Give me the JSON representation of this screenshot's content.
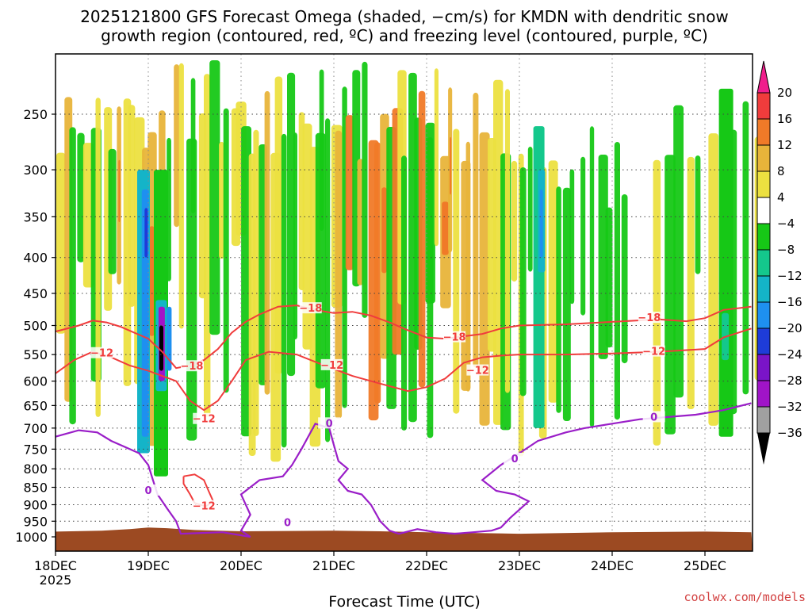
{
  "chart_data": {
    "type": "heatmap",
    "title_line1": "2025121800 GFS Forecast Omega (shaded, −cm/s) for KMDN with dendritic snow",
    "title_line2": "growth region (contoured, red, ºC) and freezing level (contoured, purple, ºC)",
    "xlabel": "Forecast Time (UTC)",
    "credit": "coolwx.com/models",
    "x_ticks": [
      {
        "label": "18DEC",
        "day": 0
      },
      {
        "label": "19DEC",
        "day": 1
      },
      {
        "label": "20DEC",
        "day": 2
      },
      {
        "label": "21DEC",
        "day": 3
      },
      {
        "label": "22DEC",
        "day": 4
      },
      {
        "label": "23DEC",
        "day": 5
      },
      {
        "label": "24DEC",
        "day": 6
      },
      {
        "label": "25DEC",
        "day": 7
      }
    ],
    "x_year_label": "2025",
    "x_range_days": [
      0,
      7.5
    ],
    "y_ticks": [
      250,
      300,
      350,
      400,
      450,
      500,
      550,
      600,
      650,
      700,
      750,
      800,
      850,
      900,
      950,
      1000
    ],
    "y_range_hpa": [
      200,
      1030
    ],
    "colorbar": {
      "labels": [
        "20",
        "16",
        "12",
        "8",
        "4",
        "−4",
        "−8",
        "−12",
        "−16",
        "−20",
        "−24",
        "−28",
        "−32",
        "−36"
      ],
      "colors": [
        "#f03c3c",
        "#f07a28",
        "#e8b43a",
        "#ece040",
        "#ffffff",
        "#16c816",
        "#14c88c",
        "#14b4c8",
        "#1e90f0",
        "#1e3cd8",
        "#7a14c8",
        "#a014c8",
        "#a0a0a0"
      ],
      "top_arrow_color": "#f01e8c",
      "bottom_arrow_color": "#000000"
    },
    "dgz_contours": [
      {
        "level": -18,
        "label": "−18",
        "color": "#f03c3c",
        "points": [
          [
            0,
            510
          ],
          [
            0.25,
            500
          ],
          [
            0.4,
            492
          ],
          [
            0.55,
            495
          ],
          [
            0.7,
            502
          ],
          [
            0.85,
            512
          ],
          [
            1.0,
            522
          ],
          [
            1.15,
            545
          ],
          [
            1.3,
            575
          ],
          [
            1.45,
            570
          ],
          [
            1.6,
            560
          ],
          [
            1.75,
            540
          ],
          [
            1.9,
            512
          ],
          [
            2.05,
            494
          ],
          [
            2.2,
            482
          ],
          [
            2.4,
            470
          ],
          [
            2.6,
            468
          ],
          [
            2.8,
            475
          ],
          [
            3.0,
            480
          ],
          [
            3.2,
            478
          ],
          [
            3.4,
            484
          ],
          [
            3.6,
            495
          ],
          [
            3.8,
            508
          ],
          [
            4.0,
            520
          ],
          [
            4.2,
            522
          ],
          [
            4.4,
            518
          ],
          [
            4.6,
            514
          ],
          [
            4.8,
            505
          ],
          [
            5.0,
            500
          ],
          [
            5.5,
            498
          ],
          [
            6.0,
            494
          ],
          [
            6.5,
            490
          ],
          [
            6.8,
            493
          ],
          [
            7.0,
            488
          ],
          [
            7.2,
            475
          ],
          [
            7.5,
            470
          ]
        ]
      },
      {
        "level": -12,
        "label": "−12",
        "color": "#f03c3c",
        "points": [
          [
            0,
            585
          ],
          [
            0.2,
            560
          ],
          [
            0.4,
            545
          ],
          [
            0.6,
            555
          ],
          [
            0.8,
            570
          ],
          [
            1.0,
            580
          ],
          [
            1.15,
            590
          ],
          [
            1.3,
            600
          ],
          [
            1.45,
            640
          ],
          [
            1.6,
            660
          ],
          [
            1.75,
            640
          ],
          [
            1.9,
            600
          ],
          [
            2.05,
            560
          ],
          [
            2.3,
            545
          ],
          [
            2.6,
            550
          ],
          [
            2.9,
            570
          ],
          [
            3.2,
            590
          ],
          [
            3.5,
            605
          ],
          [
            3.8,
            620
          ],
          [
            4.0,
            612
          ],
          [
            4.2,
            595
          ],
          [
            4.4,
            565
          ],
          [
            4.6,
            555
          ],
          [
            4.8,
            552
          ],
          [
            5.0,
            550
          ],
          [
            5.5,
            550
          ],
          [
            6.0,
            548
          ],
          [
            6.5,
            545
          ],
          [
            7.0,
            540
          ],
          [
            7.2,
            520
          ],
          [
            7.5,
            505
          ]
        ]
      }
    ],
    "dgz_closed_loop": {
      "label": "−12",
      "color": "#f03c3c",
      "points": [
        [
          1.38,
          820
        ],
        [
          1.5,
          815
        ],
        [
          1.6,
          830
        ],
        [
          1.65,
          860
        ],
        [
          1.7,
          890
        ],
        [
          1.62,
          905
        ],
        [
          1.5,
          895
        ],
        [
          1.45,
          870
        ],
        [
          1.38,
          840
        ],
        [
          1.38,
          820
        ]
      ]
    },
    "freezing_level": {
      "level": 0,
      "label": "0",
      "color": "#9a1ec8",
      "points": [
        [
          0,
          720
        ],
        [
          0.25,
          705
        ],
        [
          0.45,
          710
        ],
        [
          0.6,
          730
        ],
        [
          0.75,
          745
        ],
        [
          0.9,
          760
        ],
        [
          1.0,
          790
        ],
        [
          1.05,
          830
        ],
        [
          1.1,
          870
        ],
        [
          1.2,
          910
        ],
        [
          1.3,
          950
        ],
        [
          1.35,
          990
        ],
        [
          1.8,
          985
        ],
        [
          2.1,
          1000
        ],
        [
          2.0,
          980
        ],
        [
          2.1,
          930
        ],
        [
          2.0,
          870
        ],
        [
          2.2,
          830
        ],
        [
          2.45,
          820
        ],
        [
          2.55,
          790
        ],
        [
          2.65,
          750
        ],
        [
          2.8,
          690
        ],
        [
          2.95,
          700
        ],
        [
          3.0,
          740
        ],
        [
          3.05,
          780
        ],
        [
          3.15,
          800
        ],
        [
          3.05,
          830
        ],
        [
          3.15,
          860
        ],
        [
          3.3,
          870
        ],
        [
          3.4,
          900
        ],
        [
          3.5,
          950
        ],
        [
          3.6,
          980
        ],
        [
          3.7,
          990
        ],
        [
          3.9,
          975
        ],
        [
          4.1,
          985
        ],
        [
          4.3,
          990
        ],
        [
          4.5,
          985
        ],
        [
          4.7,
          980
        ],
        [
          4.8,
          970
        ],
        [
          4.9,
          940
        ],
        [
          5.1,
          890
        ],
        [
          4.95,
          870
        ],
        [
          4.75,
          860
        ],
        [
          4.6,
          830
        ],
        [
          4.8,
          790
        ],
        [
          5.0,
          760
        ],
        [
          5.2,
          730
        ],
        [
          5.5,
          710
        ],
        [
          5.7,
          700
        ],
        [
          6.0,
          690
        ],
        [
          6.3,
          680
        ],
        [
          6.6,
          675
        ],
        [
          6.9,
          670
        ],
        [
          7.2,
          660
        ],
        [
          7.5,
          645
        ]
      ]
    },
    "terrain_color": "#9c4a22"
  }
}
